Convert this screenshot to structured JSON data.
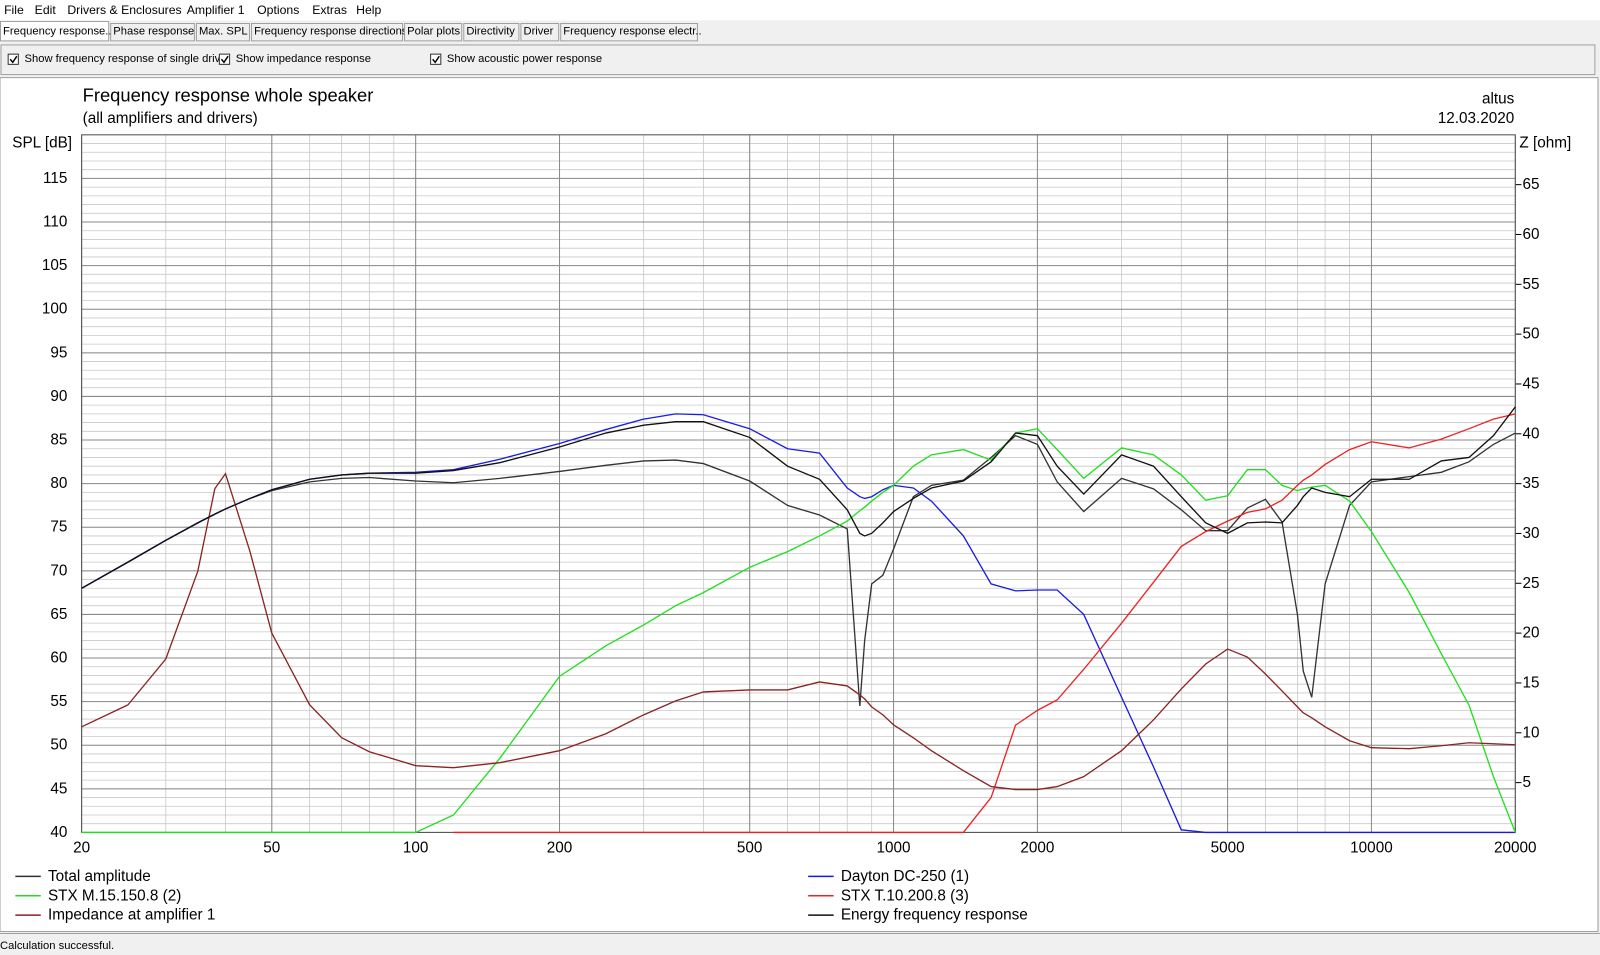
{
  "menu": [
    "File",
    "Edit",
    "Drivers & Enclosures",
    "Amplifier 1",
    "Options",
    "Extras",
    "Help"
  ],
  "tabs": [
    "Frequency response..",
    "Phase response",
    "Max. SPL",
    "Frequency response directions",
    "Polar plots",
    "Directivity",
    "Driver",
    "Frequency response electr.."
  ],
  "checkboxes": [
    {
      "label": "Show frequency response of single drive",
      "checked": true
    },
    {
      "label": "Show impedance response",
      "checked": true
    },
    {
      "label": "Show acoustic power response",
      "checked": true
    }
  ],
  "chart_data": {
    "type": "line",
    "title": "Frequency response whole speaker",
    "subtitle": "(all amplifiers and drivers)",
    "annotations": [
      "altus",
      "12.03.2020"
    ],
    "ylabel": "SPL [dB]",
    "y2label": "Z [ohm]",
    "xscale": "log",
    "grid": true,
    "legend": "bottom",
    "x": [
      20,
      25,
      30,
      35,
      38,
      40,
      45,
      50,
      60,
      70,
      80,
      100,
      120,
      150,
      200,
      250,
      300,
      350,
      400,
      500,
      600,
      700,
      800,
      850,
      870,
      900,
      950,
      1000,
      1100,
      1200,
      1400,
      1600,
      1800,
      2000,
      2200,
      2500,
      3000,
      3500,
      4000,
      4500,
      5000,
      5500,
      6000,
      6500,
      7000,
      7200,
      7500,
      8000,
      9000,
      10000,
      12000,
      14000,
      16000,
      18000,
      20000
    ],
    "xlim": [
      20,
      20000
    ],
    "xticks": [
      20,
      50,
      100,
      200,
      500,
      1000,
      2000,
      5000,
      10000,
      20000
    ],
    "ylim": [
      40,
      120
    ],
    "yticks": [
      40,
      45,
      50,
      55,
      60,
      65,
      70,
      75,
      80,
      85,
      90,
      95,
      100,
      105,
      110,
      115
    ],
    "y2lim": [
      0,
      70
    ],
    "y2ticks": [
      5,
      10,
      15,
      20,
      25,
      30,
      35,
      40,
      45,
      50,
      55,
      60,
      65
    ],
    "series": [
      {
        "name": "Total amplitude",
        "color": "#333333",
        "values": [
          68,
          71,
          73.5,
          75.5,
          76.5,
          77.1,
          78.3,
          79.2,
          80.2,
          80.6,
          80.7,
          80.3,
          80.1,
          80.6,
          81.4,
          82.1,
          82.6,
          82.7,
          82.3,
          80.3,
          77.5,
          76.4,
          74.8,
          54.5,
          62,
          68.5,
          69.5,
          72.5,
          78.5,
          79.8,
          80.4,
          83,
          85.5,
          84.5,
          80.2,
          76.8,
          80.6,
          79.4,
          77,
          74.6,
          74.6,
          77.2,
          78.2,
          75.6,
          65,
          58.5,
          55.5,
          68.5,
          77.5,
          80.2,
          80.8,
          81.3,
          82.5,
          84.5,
          85.8
        ]
      },
      {
        "name": "Dayton DC-250 (1)",
        "color": "#1a1ae6",
        "values": [
          68,
          71,
          73.5,
          75.5,
          76.5,
          77.1,
          78.3,
          79.3,
          80.5,
          81,
          81.2,
          81.3,
          81.6,
          82.8,
          84.6,
          86.2,
          87.4,
          88,
          87.9,
          86.3,
          84,
          83.5,
          79.5,
          78.5,
          78.3,
          78.5,
          79.3,
          79.8,
          79.5,
          78,
          74,
          68.5,
          67.7,
          67.8,
          67.8,
          65,
          55.5,
          47.5,
          40.3,
          40,
          40,
          40,
          40,
          40,
          40,
          40,
          40,
          40,
          40,
          40,
          40,
          40,
          40,
          40,
          40
        ]
      },
      {
        "name": "STX M.15.150.8 (2)",
        "color": "#1ee01e",
        "values": [
          40,
          40,
          40,
          40,
          40,
          40,
          40,
          40,
          40,
          40,
          40,
          40,
          42,
          48.5,
          57.9,
          61.4,
          63.8,
          66,
          67.5,
          70.4,
          72.2,
          74,
          75.7,
          76.9,
          77.3,
          78,
          79,
          79.8,
          82,
          83.3,
          83.9,
          82.7,
          85.8,
          86.3,
          83.9,
          80.6,
          84.1,
          83.3,
          81,
          78.1,
          78.6,
          81.6,
          81.6,
          79.8,
          79.2,
          79.4,
          79.6,
          79.8,
          78,
          74.5,
          67.5,
          60.5,
          54.6,
          46.4,
          40
        ]
      },
      {
        "name": "STX T.10.200.8 (3)",
        "color": "#f02020",
        "values": [
          null,
          null,
          null,
          null,
          null,
          null,
          null,
          null,
          null,
          null,
          null,
          null,
          40,
          40,
          40,
          40,
          40,
          40,
          40,
          40,
          40,
          40,
          40,
          40,
          40,
          40,
          40,
          40,
          40,
          40,
          40,
          44,
          52.3,
          54,
          55.2,
          58.7,
          64,
          68.7,
          72.8,
          74.5,
          75.7,
          76.7,
          77.1,
          78.1,
          79.8,
          80.4,
          81,
          82.2,
          83.9,
          84.8,
          84.1,
          85.1,
          86.3,
          87.4,
          88
        ]
      },
      {
        "name": "Impedance at amplifier 1",
        "color": "#8b2323",
        "axis": "y2",
        "values": [
          10.6,
          12.8,
          17.4,
          26.2,
          34.5,
          36,
          28.2,
          20,
          12.8,
          9.5,
          8.1,
          6.7,
          6.5,
          7,
          8.2,
          9.9,
          11.8,
          13.2,
          14.1,
          14.3,
          14.3,
          15.1,
          14.7,
          13.8,
          13.4,
          12.6,
          11.8,
          10.8,
          9.5,
          8.2,
          6.2,
          4.6,
          4.3,
          4.3,
          4.6,
          5.6,
          8.2,
          11.3,
          14.4,
          16.9,
          18.4,
          17.6,
          15.9,
          14.2,
          12.6,
          12,
          11.5,
          10.6,
          9.2,
          8.5,
          8.4,
          8.7,
          9,
          8.9,
          8.8
        ]
      },
      {
        "name": "Energy frequency response",
        "color": "#111111",
        "values": [
          68,
          71,
          73.5,
          75.5,
          76.5,
          77.1,
          78.3,
          79.3,
          80.5,
          81,
          81.2,
          81.2,
          81.5,
          82.4,
          84.2,
          85.8,
          86.7,
          87.1,
          87.1,
          85.3,
          82,
          80.5,
          77,
          74.3,
          74,
          74.3,
          75.5,
          76.8,
          78.3,
          79.5,
          80.3,
          82.5,
          85.8,
          85.5,
          82,
          78.8,
          83.3,
          82,
          78.5,
          75.5,
          74.3,
          75.5,
          75.6,
          75.5,
          77.5,
          78.5,
          79.5,
          79,
          78.5,
          80.5,
          80.5,
          82.6,
          83,
          85.5,
          88.8
        ]
      }
    ]
  },
  "status": "Calculation successful."
}
